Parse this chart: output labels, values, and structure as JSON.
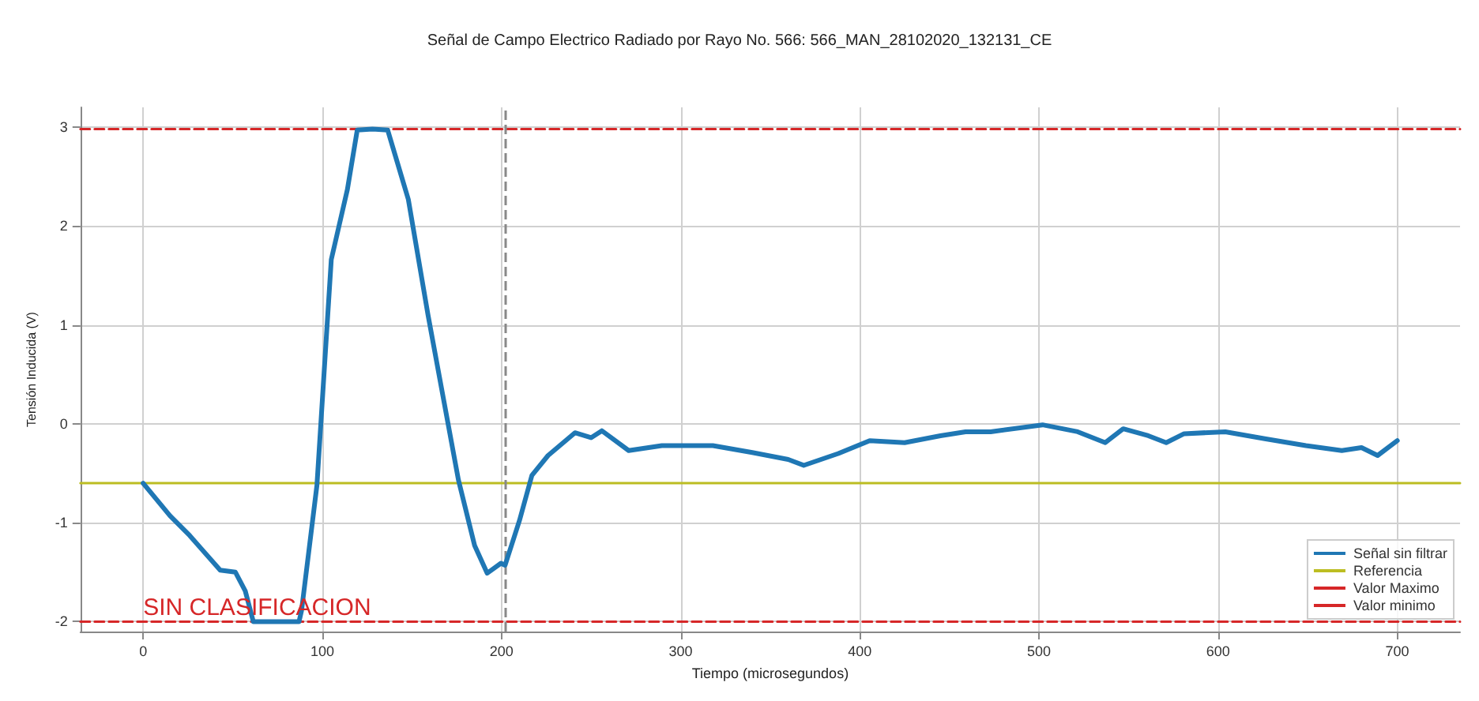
{
  "chart_data": {
    "type": "line",
    "title": "Señal de Campo Electrico Radiado por Rayo No. 566: 566_MAN_28102020_132131_CE",
    "xlabel": "Tiempo (microsegundos)",
    "ylabel": "Tensión Inducida (V)",
    "xlim": [
      -35,
      735
    ],
    "xticks": [
      0,
      100,
      200,
      300,
      400,
      500,
      600,
      700
    ],
    "ylim": [
      -2.1,
      3.2
    ],
    "yticks": [
      -2,
      -1,
      0,
      1,
      2,
      3
    ],
    "grid": true,
    "legend": "bottom right",
    "series": [
      {
        "name": "Señal sin filtrar",
        "color": "#1f77b4",
        "x": [
          0,
          15,
          26,
          43,
          51.5,
          57,
          61.5,
          70,
          80,
          87,
          88.4,
          97,
          105,
          114,
          119.5,
          128,
          136.5,
          148,
          159,
          176,
          185,
          192,
          199.7,
          202,
          210,
          217,
          226,
          241,
          250,
          256,
          271,
          289.5,
          318,
          340,
          360,
          368.7,
          388,
          405.5,
          425,
          445,
          459,
          473,
          502,
          521.6,
          537,
          547,
          561,
          571,
          581,
          604,
          626,
          649,
          669,
          680,
          689,
          700
        ],
        "values": [
          -0.6,
          -0.93,
          -1.13,
          -1.48,
          -1.5,
          -1.69,
          -2,
          -2,
          -2,
          -2,
          -1.89,
          -0.62,
          1.66,
          2.37,
          2.97,
          2.98,
          2.97,
          2.27,
          1.1,
          -0.57,
          -1.23,
          -1.51,
          -1.41,
          -1.43,
          -0.98,
          -0.52,
          -0.32,
          -0.09,
          -0.14,
          -0.07,
          -0.27,
          -0.22,
          -0.22,
          -0.29,
          -0.36,
          -0.42,
          -0.3,
          -0.17,
          -0.19,
          -0.12,
          -0.08,
          -0.08,
          -0.01,
          -0.08,
          -0.19,
          -0.05,
          -0.12,
          -0.19,
          -0.1,
          -0.08,
          -0.15,
          -0.22,
          -0.27,
          -0.24,
          -0.32,
          -0.17
        ]
      },
      {
        "name": "Referencia",
        "color": "#bcbd22",
        "x": [
          -35,
          735
        ],
        "values": [
          -0.6,
          -0.6
        ]
      },
      {
        "name": "Valor Maximo",
        "color": "#d62728",
        "line_style": "dashed",
        "x": [
          -35,
          735
        ],
        "values": [
          2.98,
          2.98
        ]
      },
      {
        "name": "Valor minimo",
        "color": "#d62728",
        "line_style": "dashed",
        "x": [
          -35,
          735
        ],
        "values": [
          -2,
          -2
        ]
      }
    ],
    "ref_lines": [
      {
        "axis": "x",
        "value": 202,
        "color": "#888888",
        "line_style": "dashed"
      }
    ],
    "annotations": [
      {
        "text": "SIN CLASIFICACION",
        "x": 0,
        "y": -2
      }
    ]
  }
}
